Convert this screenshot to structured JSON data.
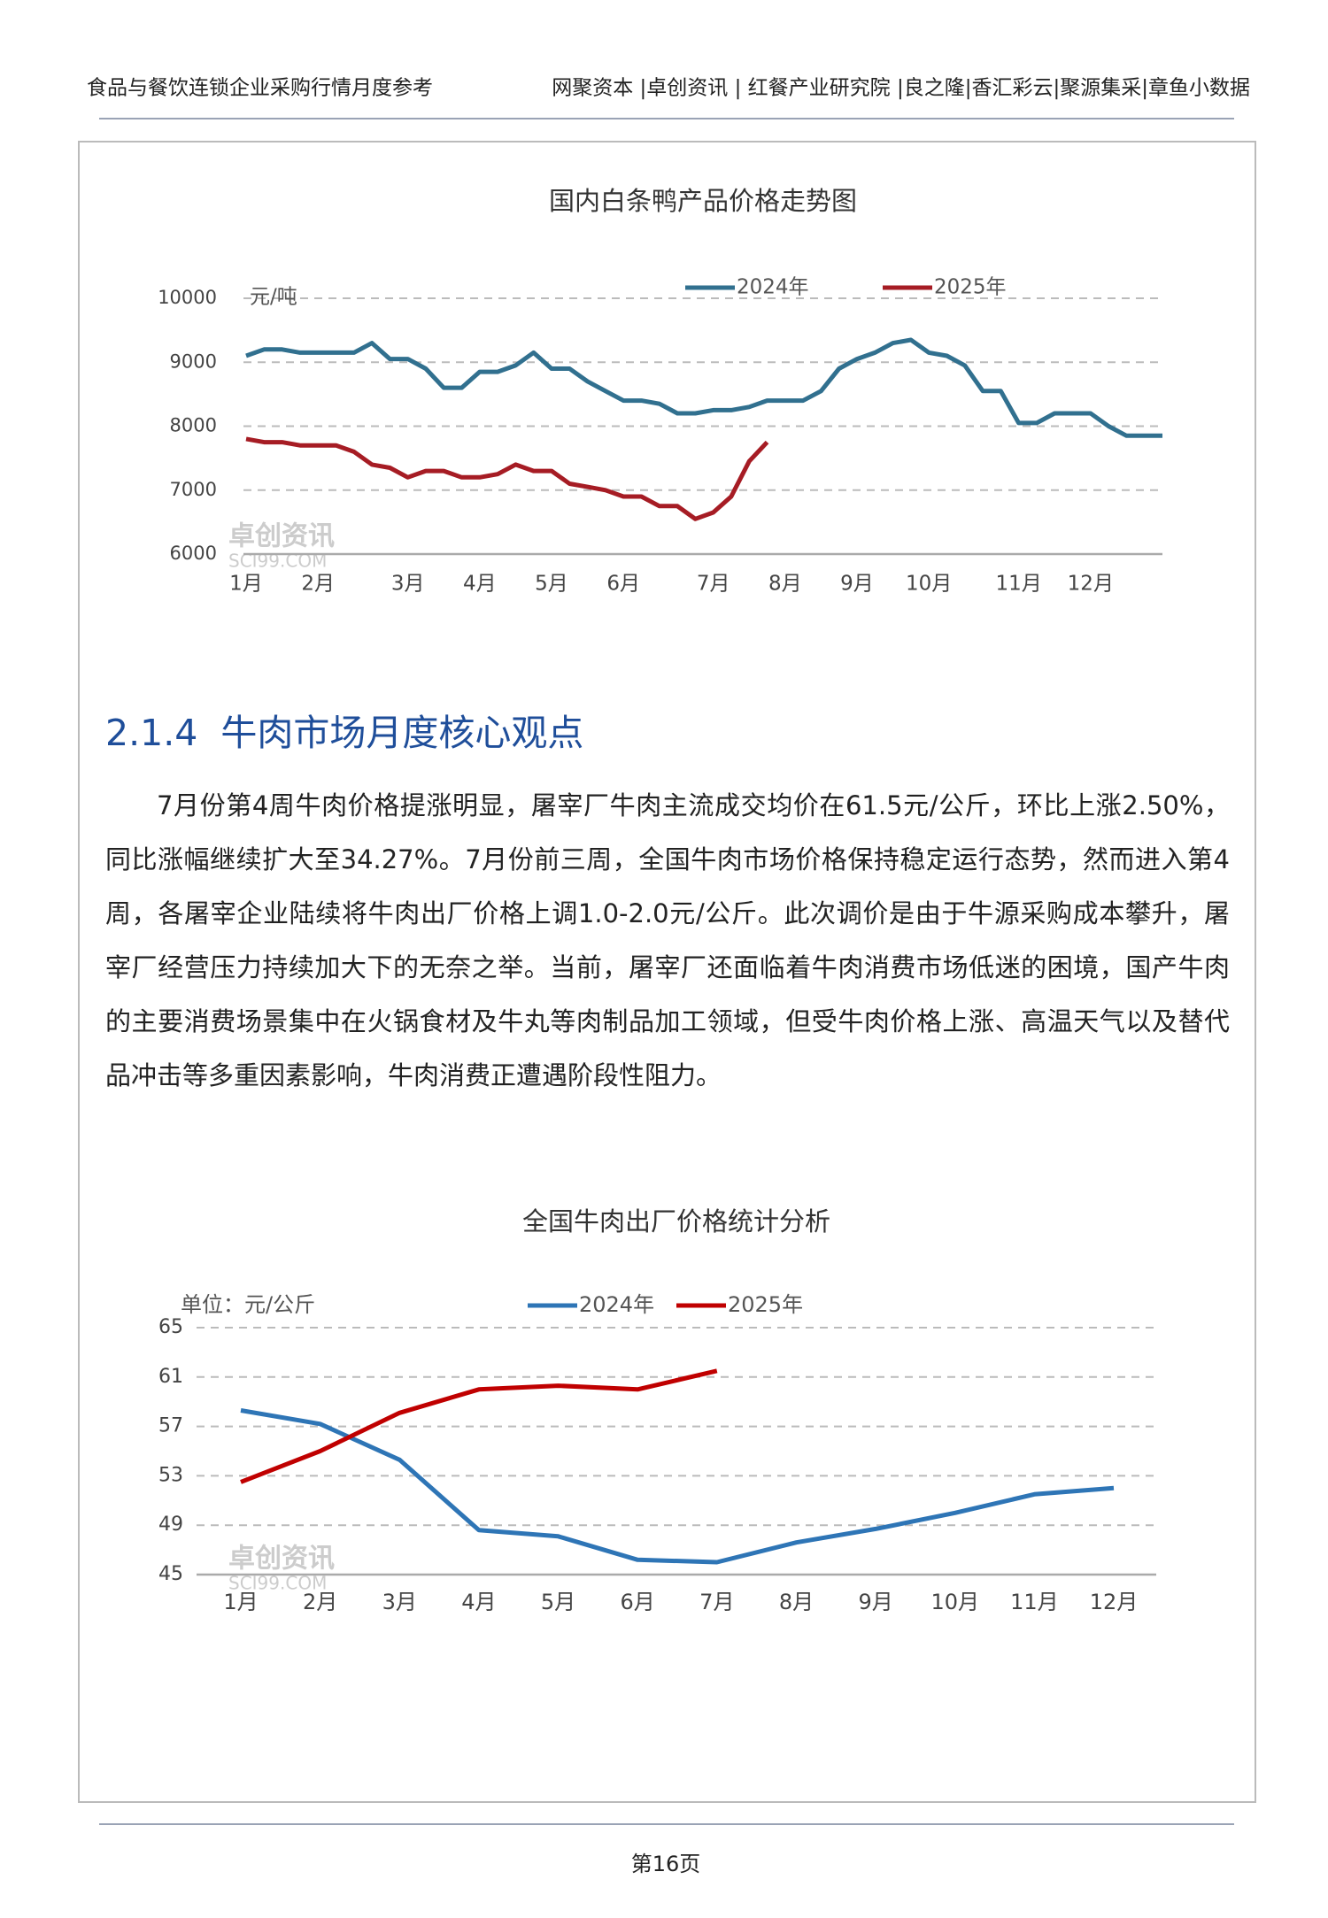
{
  "header": {
    "left": "食品与餐饮连锁企业采购行情月度参考",
    "right": "网聚资本 |卓创资讯 | 红餐产业研究院 |良之隆|香汇彩云|聚源集采|章鱼小数据"
  },
  "chart_data": [
    {
      "type": "line",
      "title": "国内白条鸭产品价格走势图",
      "unit_label": "元/吨",
      "watermark": [
        "卓创资讯",
        "SCI99.COM"
      ],
      "categories": [
        "1月",
        null,
        null,
        null,
        "2月",
        null,
        null,
        null,
        null,
        "3月",
        null,
        null,
        null,
        "4月",
        null,
        null,
        null,
        "5月",
        null,
        null,
        null,
        "6月",
        null,
        null,
        null,
        null,
        "7月",
        null,
        null,
        null,
        "8月",
        null,
        null,
        null,
        "9月",
        null,
        null,
        null,
        "10月",
        null,
        null,
        null,
        null,
        "11月",
        null,
        null,
        null,
        "12月",
        null,
        null,
        null,
        null
      ],
      "series": [
        {
          "name": "2024年",
          "color": "#31708f",
          "values": [
            9100,
            9200,
            9200,
            9150,
            9150,
            9150,
            9150,
            9300,
            9050,
            9050,
            8900,
            8600,
            8600,
            8850,
            8850,
            8950,
            9150,
            8900,
            8900,
            8700,
            8550,
            8400,
            8400,
            8350,
            8200,
            8200,
            8250,
            8250,
            8300,
            8400,
            8400,
            8400,
            8550,
            8900,
            9050,
            9150,
            9300,
            9350,
            9150,
            9100,
            8950,
            8550,
            8550,
            8050,
            8050,
            8200,
            8200,
            8200,
            8000,
            7850,
            7850,
            7850
          ]
        },
        {
          "name": "2025年",
          "color": "#a61c24",
          "values": [
            7800,
            7750,
            7750,
            7700,
            7700,
            7700,
            7600,
            7400,
            7350,
            7200,
            7300,
            7300,
            7200,
            7200,
            7250,
            7400,
            7300,
            7300,
            7100,
            7050,
            7000,
            6900,
            6900,
            6750,
            6750,
            6550,
            6650,
            6900,
            7450,
            7750,
            null,
            null,
            null,
            null,
            null,
            null,
            null,
            null,
            null,
            null,
            null,
            null,
            null,
            null,
            null,
            null,
            null,
            null,
            null,
            null,
            null,
            null
          ]
        }
      ],
      "ylim": [
        6000,
        10000
      ],
      "yticks": [
        6000,
        7000,
        8000,
        9000,
        10000
      ],
      "grid": true
    },
    {
      "type": "line",
      "title": "全国牛肉出厂价格统计分析",
      "unit_label": "单位：元/公斤",
      "watermark": [
        "卓创资讯",
        "SCI99.COM"
      ],
      "categories": [
        "1月",
        "2月",
        "3月",
        "4月",
        "5月",
        "6月",
        "7月",
        "8月",
        "9月",
        "10月",
        "11月",
        "12月"
      ],
      "series": [
        {
          "name": "2024年",
          "color": "#2e75b6",
          "values": [
            58.3,
            57.2,
            54.3,
            48.6,
            48.1,
            46.2,
            46.0,
            47.6,
            48.7,
            50.0,
            51.5,
            52.0
          ]
        },
        {
          "name": "2025年",
          "color": "#c00000",
          "values": [
            52.5,
            55.0,
            58.1,
            60.0,
            60.3,
            60.0,
            61.5,
            null,
            null,
            null,
            null,
            null
          ]
        }
      ],
      "ylim": [
        45,
        65
      ],
      "yticks": [
        45,
        49,
        53,
        57,
        61,
        65
      ],
      "grid": true
    }
  ],
  "section": {
    "heading": "2.1.4  牛肉市场月度核心观点",
    "paragraph": "7月份第4周牛肉价格提涨明显，屠宰厂牛肉主流成交均价在61.5元/公斤，环比上涨2.50%，同比涨幅继续扩大至34.27%。7月份前三周，全国牛肉市场价格保持稳定运行态势，然而进入第4周，各屠宰企业陆续将牛肉出厂价格上调1.0-2.0元/公斤。此次调价是由于牛源采购成本攀升，屠宰厂经营压力持续加大下的无奈之举。当前，屠宰厂还面临着牛肉消费市场低迷的困境，国产牛肉的主要消费场景集中在火锅食材及牛丸等肉制品加工领域，但受牛肉价格上涨、高温天气以及替代品冲击等多重因素影响，牛肉消费正遭遇阶段性阻力。"
  },
  "footer": {
    "page": "第16页"
  }
}
